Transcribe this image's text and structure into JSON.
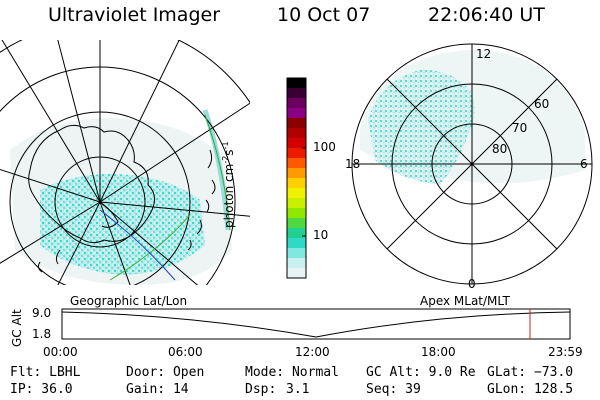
{
  "header": {
    "instrument": "Ultraviolet Imager",
    "date": "10 Oct 07",
    "time": "22:06:40 UT"
  },
  "colorbar": {
    "label": "photon cm",
    "label_sup1": "-2",
    "label_mid": "s",
    "label_sup2": "-1",
    "ticks": [
      "100",
      "10"
    ],
    "colors": [
      "#000000",
      "#3a0033",
      "#6b0060",
      "#8a0080",
      "#8b0000",
      "#b00000",
      "#d40000",
      "#ee1a00",
      "#ff5a00",
      "#ff9a00",
      "#ffd000",
      "#f0f000",
      "#c8f000",
      "#90e800",
      "#50d840",
      "#20d090",
      "#30d8c8",
      "#80e8e0",
      "#c8f0f0",
      "#e8f4f4"
    ]
  },
  "polar_plot": {
    "mlt_labels": {
      "top": "12",
      "left": "18",
      "right": "6",
      "bottom": "0"
    },
    "lat_labels": [
      "60",
      "70",
      "80"
    ]
  },
  "captions": {
    "left": "Geographic Lat/Lon",
    "right": "Apex MLat/MLT"
  },
  "altitude_plot": {
    "axis_label": "GC Alt",
    "y_ticks": [
      "9.0",
      "1.8"
    ],
    "x_ticks": [
      "00:00",
      "06:00",
      "12:00",
      "18:00",
      "23:59"
    ],
    "marker_hour": 22.11,
    "marker_color": "#d42020"
  },
  "footer": {
    "flt": "Flt: LBHL",
    "door": "Door: Open",
    "mode": "Mode: Normal",
    "gcalt": "GC Alt: 9.0 Re",
    "glat": "GLat: −73.0",
    "ip": "IP: 36.0",
    "gain": "Gain: 14",
    "dsp_label": "Dsp:",
    "dsp_value": "3.1",
    "seq": "Seq: 39",
    "glon": "GLon: 128.5"
  }
}
